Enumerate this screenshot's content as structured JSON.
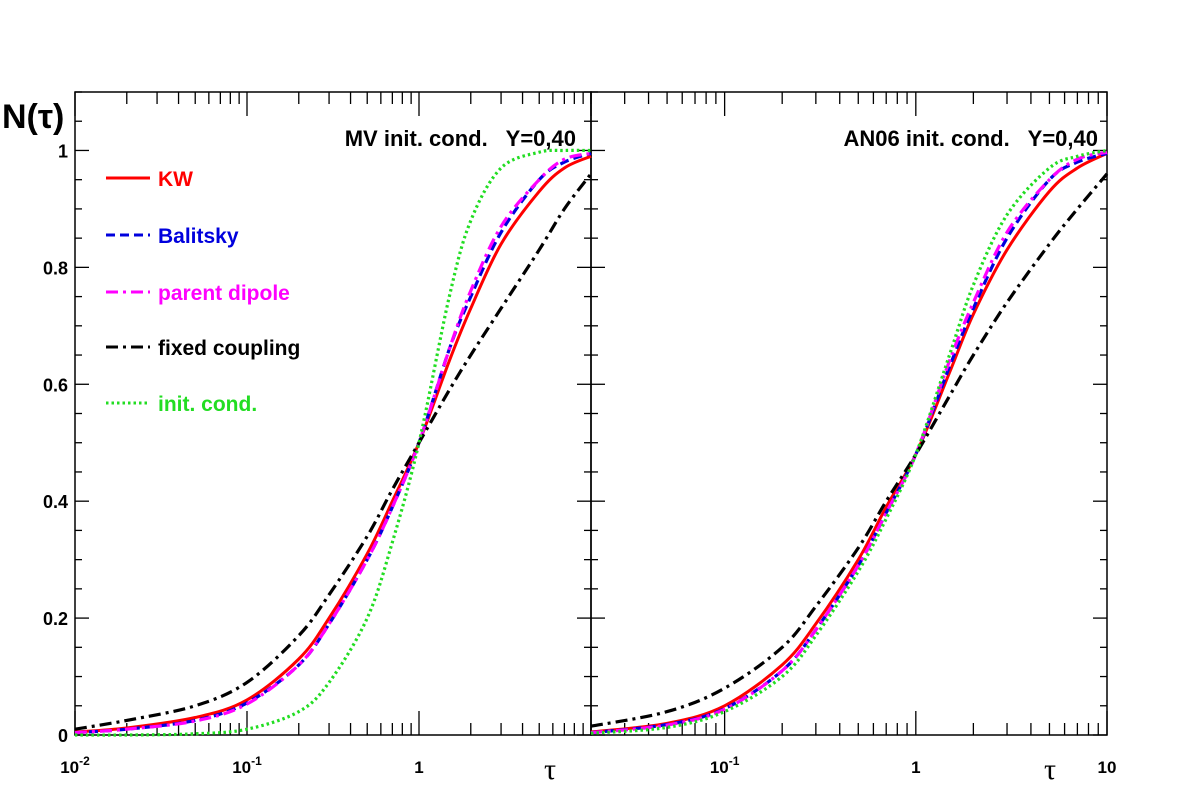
{
  "figure": {
    "ylabel": "N(τ)",
    "xlabel": "τ",
    "yticks": [
      "0",
      "0.2",
      "0.4",
      "0.6",
      "0.8",
      "1"
    ],
    "xticks_left": [
      {
        "base": "10",
        "exp": "-2"
      },
      {
        "base": "10",
        "exp": "-1"
      },
      {
        "base": "1",
        "exp": ""
      }
    ],
    "xticks_right": [
      {
        "base": "10",
        "exp": "-1"
      },
      {
        "base": "1",
        "exp": ""
      },
      {
        "base": "10",
        "exp": ""
      }
    ],
    "colors": {
      "kw": "#ff0000",
      "balitsky": "#0000dd",
      "parent": "#ff00ff",
      "fixed": "#000000",
      "init": "#22dd22"
    }
  },
  "chart_data": [
    {
      "type": "line",
      "panel": "left",
      "title": "MV init. cond.   Y=0,40",
      "xscale": "log",
      "xlim": [
        0.01,
        10
      ],
      "ylim": [
        0,
        1.1
      ],
      "legend": [
        {
          "label": "KW",
          "color": "#ff0000",
          "style": "solid"
        },
        {
          "label": "Balitsky",
          "color": "#0000dd",
          "style": "dashed"
        },
        {
          "label": "parent dipole",
          "color": "#ff00ff",
          "style": "dash-dot"
        },
        {
          "label": "fixed coupling",
          "color": "#000000",
          "style": "dash-dot"
        },
        {
          "label": "init. cond.",
          "color": "#22dd22",
          "style": "dotted"
        }
      ],
      "x": [
        0.01,
        0.02,
        0.05,
        0.1,
        0.2,
        0.3,
        0.5,
        0.7,
        1,
        1.5,
        2,
        3,
        5,
        7,
        10
      ],
      "series": [
        {
          "name": "KW",
          "color": "#ff0000",
          "style": "solid",
          "values": [
            0.005,
            0.012,
            0.03,
            0.06,
            0.13,
            0.2,
            0.31,
            0.4,
            0.5,
            0.64,
            0.73,
            0.84,
            0.93,
            0.97,
            0.99
          ]
        },
        {
          "name": "Balitsky",
          "color": "#0000dd",
          "style": "dashed",
          "values": [
            0.004,
            0.01,
            0.025,
            0.055,
            0.12,
            0.19,
            0.3,
            0.39,
            0.5,
            0.66,
            0.75,
            0.86,
            0.95,
            0.98,
            0.995
          ]
        },
        {
          "name": "parent dipole",
          "color": "#ff00ff",
          "style": "dash-dot",
          "values": [
            0.004,
            0.01,
            0.024,
            0.053,
            0.12,
            0.19,
            0.3,
            0.39,
            0.5,
            0.66,
            0.76,
            0.87,
            0.95,
            0.985,
            0.995
          ]
        },
        {
          "name": "fixed coupling",
          "color": "#000000",
          "style": "dash-dot",
          "values": [
            0.01,
            0.025,
            0.05,
            0.09,
            0.17,
            0.24,
            0.34,
            0.42,
            0.5,
            0.59,
            0.65,
            0.73,
            0.83,
            0.9,
            0.96
          ]
        },
        {
          "name": "init. cond.",
          "color": "#22dd22",
          "style": "dotted",
          "values": [
            0.0,
            0.0,
            0.002,
            0.01,
            0.04,
            0.09,
            0.2,
            0.33,
            0.5,
            0.75,
            0.88,
            0.97,
            0.997,
            1.0,
            1.0
          ]
        }
      ]
    },
    {
      "type": "line",
      "panel": "right",
      "title": "AN06 init. cond.   Y=0,40",
      "xscale": "log",
      "xlim": [
        0.02,
        10
      ],
      "ylim": [
        0,
        1.1
      ],
      "x": [
        0.02,
        0.05,
        0.1,
        0.2,
        0.3,
        0.5,
        0.7,
        1,
        1.5,
        2,
        3,
        5,
        7,
        10
      ],
      "series": [
        {
          "name": "KW",
          "color": "#ff0000",
          "style": "solid",
          "values": [
            0.005,
            0.02,
            0.05,
            0.12,
            0.19,
            0.3,
            0.39,
            0.48,
            0.62,
            0.72,
            0.83,
            0.93,
            0.97,
            0.995
          ]
        },
        {
          "name": "Balitsky",
          "color": "#0000dd",
          "style": "dashed",
          "values": [
            0.004,
            0.018,
            0.045,
            0.11,
            0.18,
            0.29,
            0.38,
            0.48,
            0.63,
            0.73,
            0.85,
            0.95,
            0.98,
            0.995
          ]
        },
        {
          "name": "parent dipole",
          "color": "#ff00ff",
          "style": "dash-dot",
          "values": [
            0.004,
            0.017,
            0.044,
            0.11,
            0.18,
            0.29,
            0.38,
            0.48,
            0.64,
            0.74,
            0.86,
            0.95,
            0.985,
            0.997
          ]
        },
        {
          "name": "fixed coupling",
          "color": "#000000",
          "style": "dash-dot",
          "values": [
            0.015,
            0.04,
            0.08,
            0.15,
            0.22,
            0.32,
            0.4,
            0.48,
            0.58,
            0.65,
            0.74,
            0.84,
            0.9,
            0.96
          ]
        },
        {
          "name": "init. cond.",
          "color": "#22dd22",
          "style": "dotted",
          "values": [
            0.003,
            0.013,
            0.04,
            0.1,
            0.17,
            0.28,
            0.37,
            0.48,
            0.65,
            0.77,
            0.89,
            0.97,
            0.99,
            1.0
          ]
        }
      ]
    }
  ]
}
